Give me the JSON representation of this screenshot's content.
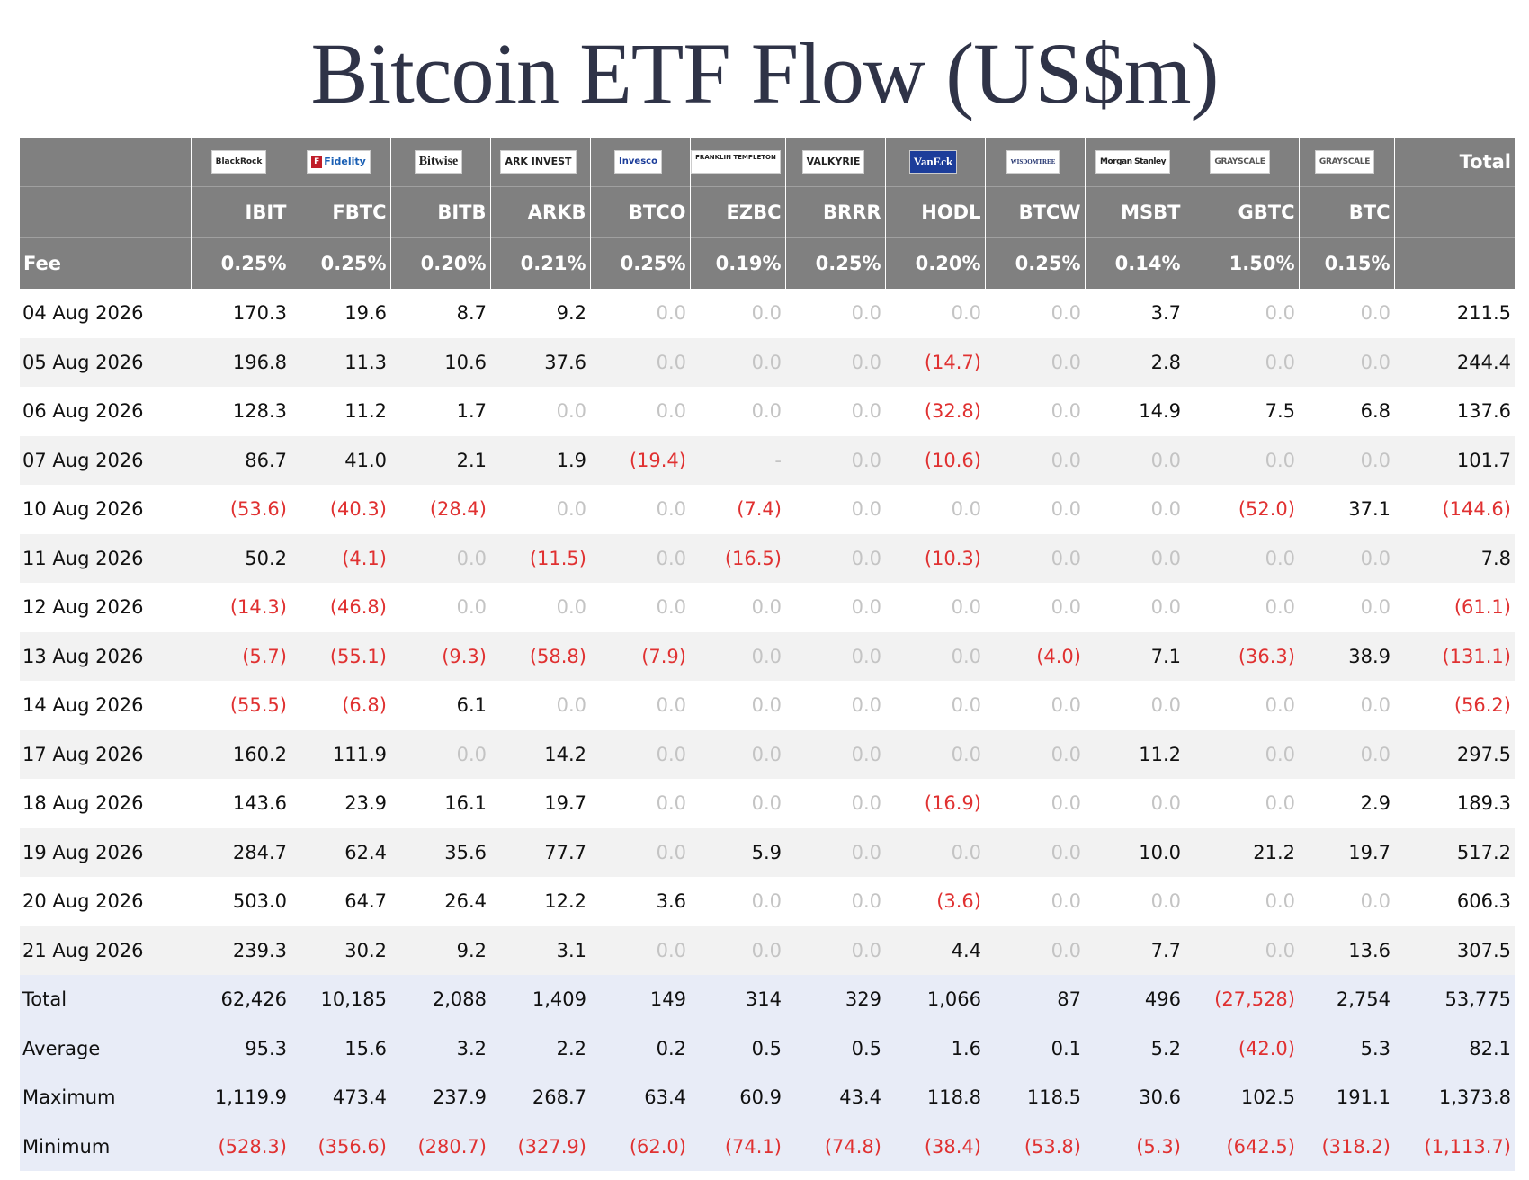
{
  "title": "Bitcoin ETF Flow (US$m)",
  "logos": [
    "BlackRock",
    "Fidelity",
    "Bitwise",
    "ARK INVEST",
    "Invesco",
    "FRANKLIN TEMPLETON",
    "VALKYRIE",
    "VanEck",
    "WISDOMTREE",
    "Morgan Stanley",
    "GRAYSCALE",
    "GRAYSCALE"
  ],
  "total_header": "Total",
  "tickers": [
    "IBIT",
    "FBTC",
    "BITB",
    "ARKB",
    "BTCO",
    "EZBC",
    "BRRR",
    "HODL",
    "BTCW",
    "MSBT",
    "GBTC",
    "BTC"
  ],
  "fee_label": "Fee",
  "fees": [
    "0.25%",
    "0.25%",
    "0.20%",
    "0.21%",
    "0.25%",
    "0.19%",
    "0.25%",
    "0.20%",
    "0.25%",
    "0.14%",
    "1.50%",
    "0.15%"
  ],
  "rows": [
    {
      "label": "04 Aug 2026",
      "values": [
        "170.3",
        "19.6",
        "8.7",
        "9.2",
        "0.0",
        "0.0",
        "0.0",
        "0.0",
        "0.0",
        "3.7",
        "0.0",
        "0.0",
        "211.5"
      ]
    },
    {
      "label": "05 Aug 2026",
      "values": [
        "196.8",
        "11.3",
        "10.6",
        "37.6",
        "0.0",
        "0.0",
        "0.0",
        "(14.7)",
        "0.0",
        "2.8",
        "0.0",
        "0.0",
        "244.4"
      ]
    },
    {
      "label": "06 Aug 2026",
      "values": [
        "128.3",
        "11.2",
        "1.7",
        "0.0",
        "0.0",
        "0.0",
        "0.0",
        "(32.8)",
        "0.0",
        "14.9",
        "7.5",
        "6.8",
        "137.6"
      ]
    },
    {
      "label": "07 Aug 2026",
      "values": [
        "86.7",
        "41.0",
        "2.1",
        "1.9",
        "(19.4)",
        "-",
        "0.0",
        "(10.6)",
        "0.0",
        "0.0",
        "0.0",
        "0.0",
        "101.7"
      ]
    },
    {
      "label": "10 Aug 2026",
      "values": [
        "(53.6)",
        "(40.3)",
        "(28.4)",
        "0.0",
        "0.0",
        "(7.4)",
        "0.0",
        "0.0",
        "0.0",
        "0.0",
        "(52.0)",
        "37.1",
        "(144.6)"
      ]
    },
    {
      "label": "11 Aug 2026",
      "values": [
        "50.2",
        "(4.1)",
        "0.0",
        "(11.5)",
        "0.0",
        "(16.5)",
        "0.0",
        "(10.3)",
        "0.0",
        "0.0",
        "0.0",
        "0.0",
        "7.8"
      ]
    },
    {
      "label": "12 Aug 2026",
      "values": [
        "(14.3)",
        "(46.8)",
        "0.0",
        "0.0",
        "0.0",
        "0.0",
        "0.0",
        "0.0",
        "0.0",
        "0.0",
        "0.0",
        "0.0",
        "(61.1)"
      ]
    },
    {
      "label": "13 Aug 2026",
      "values": [
        "(5.7)",
        "(55.1)",
        "(9.3)",
        "(58.8)",
        "(7.9)",
        "0.0",
        "0.0",
        "0.0",
        "(4.0)",
        "7.1",
        "(36.3)",
        "38.9",
        "(131.1)"
      ]
    },
    {
      "label": "14 Aug 2026",
      "values": [
        "(55.5)",
        "(6.8)",
        "6.1",
        "0.0",
        "0.0",
        "0.0",
        "0.0",
        "0.0",
        "0.0",
        "0.0",
        "0.0",
        "0.0",
        "(56.2)"
      ]
    },
    {
      "label": "17 Aug 2026",
      "values": [
        "160.2",
        "111.9",
        "0.0",
        "14.2",
        "0.0",
        "0.0",
        "0.0",
        "0.0",
        "0.0",
        "11.2",
        "0.0",
        "0.0",
        "297.5"
      ]
    },
    {
      "label": "18 Aug 2026",
      "values": [
        "143.6",
        "23.9",
        "16.1",
        "19.7",
        "0.0",
        "0.0",
        "0.0",
        "(16.9)",
        "0.0",
        "0.0",
        "0.0",
        "2.9",
        "189.3"
      ]
    },
    {
      "label": "19 Aug 2026",
      "values": [
        "284.7",
        "62.4",
        "35.6",
        "77.7",
        "0.0",
        "5.9",
        "0.0",
        "0.0",
        "0.0",
        "10.0",
        "21.2",
        "19.7",
        "517.2"
      ]
    },
    {
      "label": "20 Aug 2026",
      "values": [
        "503.0",
        "64.7",
        "26.4",
        "12.2",
        "3.6",
        "0.0",
        "0.0",
        "(3.6)",
        "0.0",
        "0.0",
        "0.0",
        "0.0",
        "606.3"
      ]
    },
    {
      "label": "21 Aug 2026",
      "values": [
        "239.3",
        "30.2",
        "9.2",
        "3.1",
        "0.0",
        "0.0",
        "0.0",
        "4.4",
        "0.0",
        "7.7",
        "0.0",
        "13.6",
        "307.5"
      ]
    }
  ],
  "summary": [
    {
      "label": "Total",
      "values": [
        "62,426",
        "10,185",
        "2,088",
        "1,409",
        "149",
        "314",
        "329",
        "1,066",
        "87",
        "496",
        "(27,528)",
        "2,754",
        "53,775"
      ]
    },
    {
      "label": "Average",
      "values": [
        "95.3",
        "15.6",
        "3.2",
        "2.2",
        "0.2",
        "0.5",
        "0.5",
        "1.6",
        "0.1",
        "5.2",
        "(42.0)",
        "5.3",
        "82.1"
      ]
    },
    {
      "label": "Maximum",
      "values": [
        "1,119.9",
        "473.4",
        "237.9",
        "268.7",
        "63.4",
        "60.9",
        "43.4",
        "118.8",
        "118.5",
        "30.6",
        "102.5",
        "191.1",
        "1,373.8"
      ]
    },
    {
      "label": "Minimum",
      "values": [
        "(528.3)",
        "(356.6)",
        "(280.7)",
        "(327.9)",
        "(62.0)",
        "(74.1)",
        "(74.8)",
        "(38.4)",
        "(53.8)",
        "(5.3)",
        "(642.5)",
        "(318.2)",
        "(1,113.7)"
      ]
    }
  ],
  "colors": {
    "header_bg": "#808080",
    "negative": "#e03131",
    "zero": "#c4c4c4",
    "title": "#2f3347",
    "summary_bg": "#e8ecf7",
    "stripe": "#f2f2f2"
  }
}
